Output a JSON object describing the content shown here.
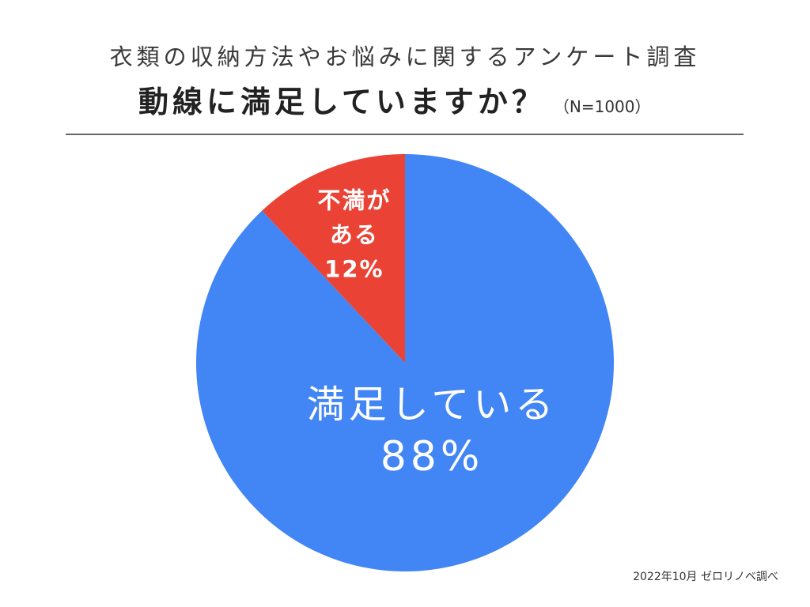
{
  "header": {
    "title": "衣類の収納方法やお悩みに関するアンケート調査",
    "question": "動線に満足していますか？",
    "sample_size": "（N=1000）"
  },
  "footer": {
    "source": "2022年10月 ゼロリノベ調べ"
  },
  "chart_data": {
    "type": "pie",
    "slices": [
      {
        "label_lines": [
          "満足している"
        ],
        "value": 88,
        "unit": "%",
        "color": "#4285F4"
      },
      {
        "label_lines": [
          "不満が",
          "ある"
        ],
        "value": 12,
        "unit": "%",
        "color": "#EA4335"
      }
    ],
    "label_color": "#FFFFFF"
  }
}
